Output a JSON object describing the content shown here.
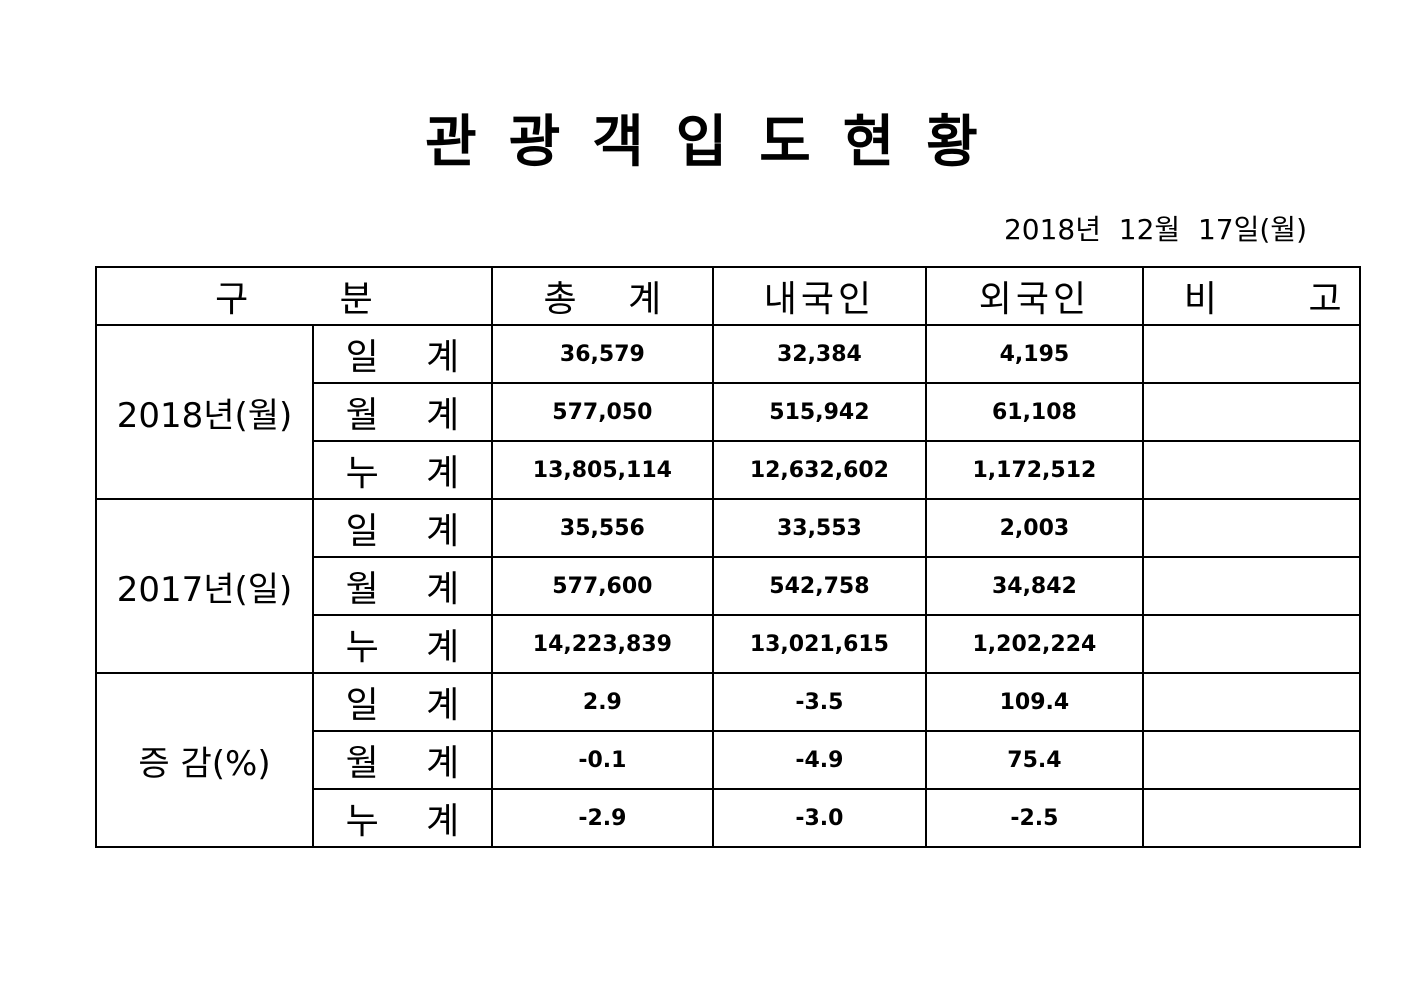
{
  "title": "관광객입도현황",
  "date": "2018년  12월  17일(월)",
  "table": {
    "headers": {
      "category": "구 분",
      "total": "총 계",
      "domestic": "내국인",
      "foreign": "외국인",
      "note": "비 고"
    },
    "groups": [
      {
        "label": "2018년(월)",
        "rows": [
          {
            "label": "일 계",
            "total": "36,579",
            "domestic": "32,384",
            "foreign": "4,195",
            "note": ""
          },
          {
            "label": "월 계",
            "total": "577,050",
            "domestic": "515,942",
            "foreign": "61,108",
            "note": ""
          },
          {
            "label": "누 계",
            "total": "13,805,114",
            "domestic": "12,632,602",
            "foreign": "1,172,512",
            "note": ""
          }
        ]
      },
      {
        "label": "2017년(일)",
        "rows": [
          {
            "label": "일 계",
            "total": "35,556",
            "domestic": "33,553",
            "foreign": "2,003",
            "note": ""
          },
          {
            "label": "월 계",
            "total": "577,600",
            "domestic": "542,758",
            "foreign": "34,842",
            "note": ""
          },
          {
            "label": "누 계",
            "total": "14,223,839",
            "domestic": "13,021,615",
            "foreign": "1,202,224",
            "note": ""
          }
        ]
      },
      {
        "label": "증 감(%)",
        "rows": [
          {
            "label": "일 계",
            "total": "2.9",
            "domestic": "-3.5",
            "foreign": "109.4",
            "note": ""
          },
          {
            "label": "월 계",
            "total": "-0.1",
            "domestic": "-4.9",
            "foreign": "75.4",
            "note": ""
          },
          {
            "label": "누 계",
            "total": "-2.9",
            "domestic": "-3.0",
            "foreign": "-2.5",
            "note": ""
          }
        ]
      }
    ]
  }
}
